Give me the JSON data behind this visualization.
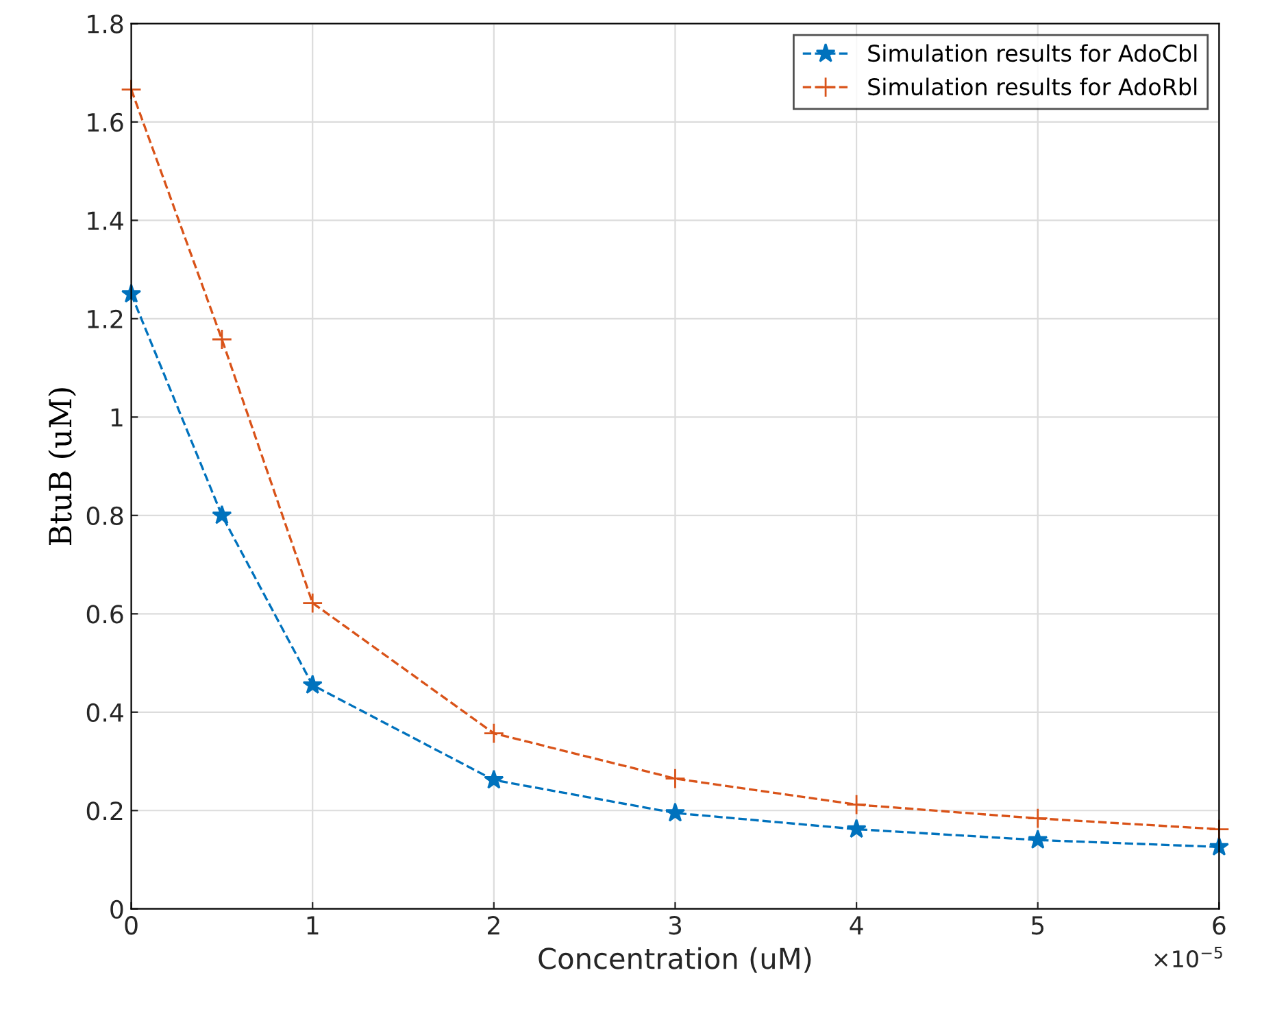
{
  "chart_data": {
    "type": "line",
    "xlabel": "Concentration (uM)",
    "ylabel": "BtuB (uM)",
    "x": [
      0,
      0.5,
      1,
      2,
      3,
      4,
      5,
      6
    ],
    "series": [
      {
        "name": "Simulation results for AdoCbl",
        "color": "#0072bd",
        "marker": "star",
        "values": [
          1.25,
          0.8,
          0.455,
          0.262,
          0.195,
          0.162,
          0.14,
          0.126
        ]
      },
      {
        "name": "Simulation results for AdoRbl",
        "color": "#d95319",
        "marker": "cross",
        "values": [
          1.666,
          1.158,
          0.622,
          0.357,
          0.265,
          0.212,
          0.184,
          0.162
        ]
      }
    ],
    "line_style": "dashed",
    "xlim": [
      0,
      6
    ],
    "xticks": [
      0,
      1,
      2,
      3,
      4,
      5,
      6
    ],
    "ylim": [
      0,
      1.8
    ],
    "yticks": [
      0,
      0.2,
      0.4,
      0.6,
      0.8,
      1,
      1.2,
      1.4,
      1.6,
      1.8
    ],
    "annotations": [
      "×10$^{−5}$"
    ],
    "grid": true,
    "legend": "top right"
  }
}
